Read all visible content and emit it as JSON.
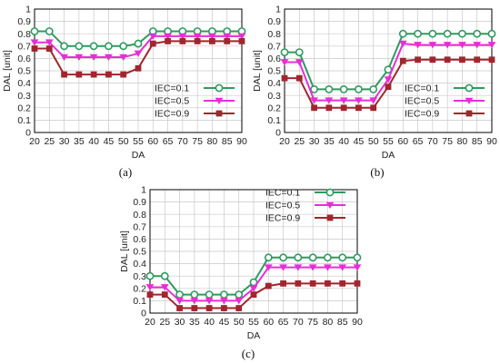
{
  "colors": {
    "series_0": "#2e9a5f",
    "series_1": "#e52fd6",
    "series_2": "#a1262f",
    "grid": "#c8c8c8",
    "frame": "#000000"
  },
  "chart_data": [
    {
      "caption": "(a)",
      "type": "line",
      "xlabel": "DA",
      "ylabel": "DAL [unit]",
      "xlim": [
        20,
        90
      ],
      "ylim": [
        0,
        1
      ],
      "xticks": [
        20,
        25,
        30,
        35,
        40,
        45,
        50,
        55,
        60,
        65,
        70,
        75,
        80,
        85,
        90
      ],
      "yticks": [
        0,
        0.1,
        0.2,
        0.3,
        0.4,
        0.5,
        0.6,
        0.7,
        0.8,
        0.9,
        1
      ],
      "grid": true,
      "legend_position": "bottom-right",
      "x": [
        20,
        25,
        30,
        35,
        40,
        45,
        50,
        55,
        60,
        65,
        70,
        75,
        80,
        85,
        90
      ],
      "series": [
        {
          "name": "IEC=0.1",
          "marker": "circle",
          "values": [
            0.82,
            0.82,
            0.7,
            0.7,
            0.7,
            0.7,
            0.7,
            0.72,
            0.82,
            0.82,
            0.82,
            0.82,
            0.82,
            0.82,
            0.82
          ]
        },
        {
          "name": "IEC=0.5",
          "marker": "triangle-down",
          "values": [
            0.73,
            0.73,
            0.61,
            0.61,
            0.61,
            0.61,
            0.61,
            0.64,
            0.78,
            0.78,
            0.78,
            0.78,
            0.78,
            0.78,
            0.78
          ]
        },
        {
          "name": "IEC=0.9",
          "marker": "square",
          "values": [
            0.68,
            0.68,
            0.47,
            0.47,
            0.47,
            0.47,
            0.47,
            0.52,
            0.72,
            0.74,
            0.74,
            0.74,
            0.74,
            0.74,
            0.74
          ]
        }
      ]
    },
    {
      "caption": "(b)",
      "type": "line",
      "xlabel": "DA",
      "ylabel": "DAL [unit]",
      "xlim": [
        20,
        90
      ],
      "ylim": [
        0,
        1
      ],
      "xticks": [
        20,
        25,
        30,
        35,
        40,
        45,
        50,
        55,
        60,
        65,
        70,
        75,
        80,
        85,
        90
      ],
      "yticks": [
        0,
        0.1,
        0.2,
        0.3,
        0.4,
        0.5,
        0.6,
        0.7,
        0.8,
        0.9,
        1
      ],
      "grid": true,
      "legend_position": "bottom-right",
      "x": [
        20,
        25,
        30,
        35,
        40,
        45,
        50,
        55,
        60,
        65,
        70,
        75,
        80,
        85,
        90
      ],
      "series": [
        {
          "name": "IEC=0.1",
          "marker": "circle",
          "values": [
            0.65,
            0.65,
            0.35,
            0.35,
            0.35,
            0.35,
            0.35,
            0.51,
            0.8,
            0.8,
            0.8,
            0.8,
            0.8,
            0.8,
            0.8
          ]
        },
        {
          "name": "IEC=0.5",
          "marker": "triangle-down",
          "values": [
            0.57,
            0.57,
            0.26,
            0.26,
            0.26,
            0.26,
            0.26,
            0.43,
            0.72,
            0.71,
            0.71,
            0.71,
            0.71,
            0.71,
            0.71
          ]
        },
        {
          "name": "IEC=0.9",
          "marker": "square",
          "values": [
            0.44,
            0.44,
            0.2,
            0.2,
            0.2,
            0.2,
            0.2,
            0.37,
            0.58,
            0.59,
            0.59,
            0.59,
            0.59,
            0.59,
            0.59
          ]
        }
      ]
    },
    {
      "caption": "(c)",
      "type": "line",
      "xlabel": "DA",
      "ylabel": "DAL [unit]",
      "xlim": [
        20,
        90
      ],
      "ylim": [
        0,
        1
      ],
      "xticks": [
        20,
        25,
        30,
        35,
        40,
        45,
        50,
        55,
        60,
        65,
        70,
        75,
        80,
        85,
        90
      ],
      "yticks": [
        0,
        0.1,
        0.2,
        0.3,
        0.4,
        0.5,
        0.6,
        0.7,
        0.8,
        0.9,
        1
      ],
      "grid": true,
      "legend_position": "top-right",
      "x": [
        20,
        25,
        30,
        35,
        40,
        45,
        50,
        55,
        60,
        65,
        70,
        75,
        80,
        85,
        90
      ],
      "series": [
        {
          "name": "IEC=0.1",
          "marker": "circle",
          "values": [
            0.3,
            0.3,
            0.15,
            0.15,
            0.15,
            0.15,
            0.15,
            0.25,
            0.45,
            0.45,
            0.45,
            0.45,
            0.45,
            0.45,
            0.45
          ]
        },
        {
          "name": "IEC=0.5",
          "marker": "triangle-down",
          "values": [
            0.21,
            0.21,
            0.1,
            0.1,
            0.1,
            0.1,
            0.1,
            0.2,
            0.37,
            0.37,
            0.37,
            0.37,
            0.37,
            0.37,
            0.37
          ]
        },
        {
          "name": "IEC=0.9",
          "marker": "square",
          "values": [
            0.15,
            0.15,
            0.04,
            0.04,
            0.04,
            0.04,
            0.04,
            0.15,
            0.22,
            0.24,
            0.24,
            0.24,
            0.24,
            0.24,
            0.24
          ]
        }
      ]
    }
  ]
}
